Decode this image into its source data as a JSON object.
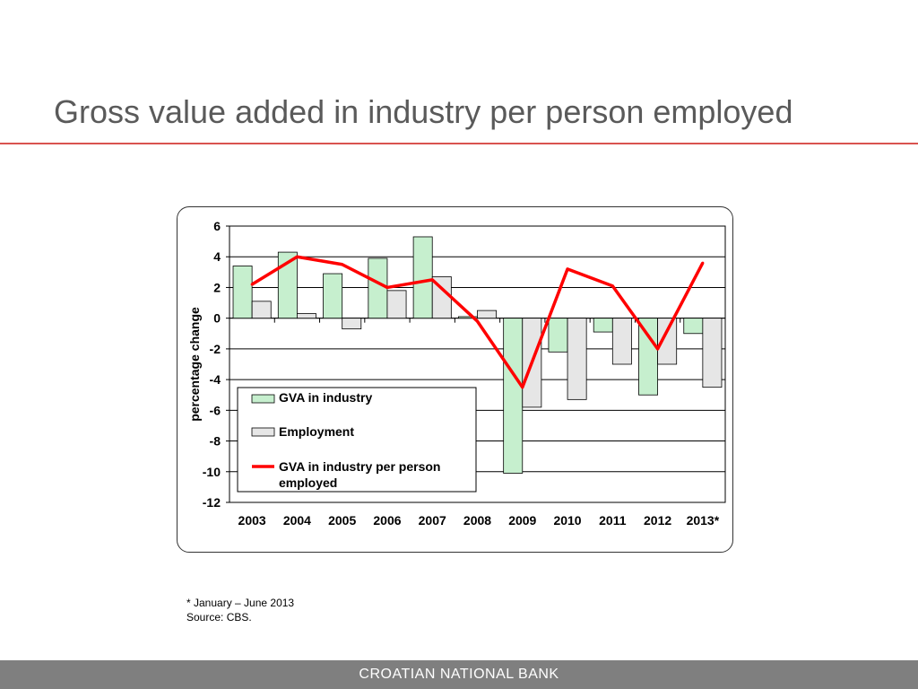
{
  "slide": {
    "title": "Gross value added in industry per person employed",
    "footnote": "* January – June 2013",
    "source": "Source: CBS.",
    "footer": "CROATIAN NATIONAL BANK"
  },
  "colors": {
    "title_rule": "#d9534f",
    "gva_bar": "#c6efce",
    "employment_bar": "#e6e6e6",
    "line": "#ff0000",
    "footer_bar": "#7f7f7f"
  },
  "chart_data": {
    "type": "bar",
    "categories": [
      "2003",
      "2004",
      "2005",
      "2006",
      "2007",
      "2008",
      "2009",
      "2010",
      "2011",
      "2012",
      "2013*"
    ],
    "series": [
      {
        "name": "GVA in industry",
        "kind": "bar",
        "values": [
          3.4,
          4.3,
          2.9,
          3.9,
          5.3,
          0.1,
          -10.1,
          -2.2,
          -0.9,
          -5.0,
          -1.0
        ]
      },
      {
        "name": "Employment",
        "kind": "bar",
        "values": [
          1.1,
          0.3,
          -0.7,
          1.8,
          2.7,
          0.5,
          -5.8,
          -5.3,
          -3.0,
          -3.0,
          -4.5
        ]
      },
      {
        "name": "GVA in industry per person employed",
        "kind": "line",
        "values": [
          2.2,
          4.0,
          3.5,
          2.0,
          2.5,
          -0.2,
          -4.5,
          3.2,
          2.1,
          -2.0,
          3.6
        ]
      }
    ],
    "ylabel": "percentage change",
    "xlabel": "",
    "ylim": [
      -12,
      6
    ],
    "yticks": [
      6,
      4,
      2,
      0,
      -2,
      -4,
      -6,
      -8,
      -10,
      -12
    ],
    "grid": true,
    "legend": "bottom-left"
  }
}
